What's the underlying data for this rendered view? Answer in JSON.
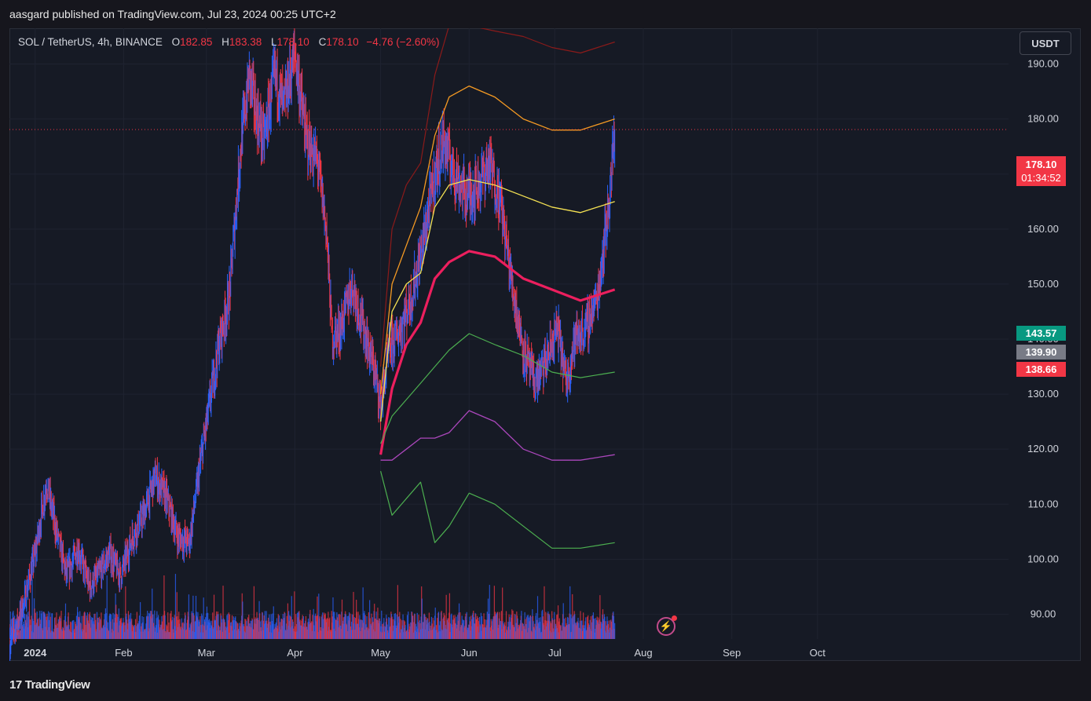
{
  "header": {
    "published": "aasgard published on TradingView.com, Jul 23, 2024 00:25 UTC+2"
  },
  "legend": {
    "symbol": "SOL / TetherUS, 4h, BINANCE",
    "open_label": "O",
    "open": "182.85",
    "high_label": "H",
    "high": "183.38",
    "low_label": "L",
    "low": "178.10",
    "close_label": "C",
    "close": "178.10",
    "change": "−4.76 (−2.60%)"
  },
  "currency_button": "USDT",
  "footer": {
    "brand": "TradingView",
    "logo_mark": "17"
  },
  "price_tags": [
    {
      "value": "178.10",
      "sub": "01:34:52",
      "color": "#f23645"
    },
    {
      "value": "143.57",
      "color": "#089981"
    },
    {
      "value": "139.90",
      "color": "#787b86"
    },
    {
      "value": "138.66",
      "color": "#f23645"
    }
  ],
  "colors": {
    "bull": "#2962ff",
    "bear": "#f23645",
    "vwap": "#ec1f5e",
    "band1_up": "#f5e253",
    "band2_up": "#f59a23",
    "band3_up": "#8b1a1a",
    "band1_dn": "#4caf50",
    "band2_dn": "#ab47bc",
    "band3_dn": "#4caf50"
  },
  "chart_data": {
    "type": "candlestick",
    "symbol": "SOL / TetherUS",
    "interval": "4h",
    "exchange": "BINANCE",
    "y_axis": {
      "ticks": [
        90,
        100,
        110,
        120,
        130,
        140,
        150,
        160,
        170,
        180,
        190
      ],
      "range": [
        81.5,
        196.5
      ]
    },
    "x_axis": {
      "range": [
        "2023-12-23",
        "2024-10-25"
      ],
      "ticks": [
        {
          "label": "2024",
          "date": "2024-01-01"
        },
        {
          "label": "Feb",
          "date": "2024-02-01"
        },
        {
          "label": "Mar",
          "date": "2024-03-01"
        },
        {
          "label": "Apr",
          "date": "2024-04-01"
        },
        {
          "label": "May",
          "date": "2024-05-01"
        },
        {
          "label": "Jun",
          "date": "2024-06-01"
        },
        {
          "label": "Jul",
          "date": "2024-07-01"
        },
        {
          "label": "Aug",
          "date": "2024-08-01"
        },
        {
          "label": "Sep",
          "date": "2024-09-01"
        },
        {
          "label": "Oct",
          "date": "2024-10-01"
        }
      ]
    },
    "last_price": 178.1,
    "price_path": {
      "dates": [
        "2023-12-23",
        "2023-12-28",
        "2024-01-01",
        "2024-01-05",
        "2024-01-08",
        "2024-01-12",
        "2024-01-16",
        "2024-01-20",
        "2024-01-23",
        "2024-01-27",
        "2024-01-31",
        "2024-02-04",
        "2024-02-08",
        "2024-02-12",
        "2024-02-16",
        "2024-02-20",
        "2024-02-24",
        "2024-02-28",
        "2024-03-02",
        "2024-03-05",
        "2024-03-09",
        "2024-03-13",
        "2024-03-16",
        "2024-03-18",
        "2024-03-21",
        "2024-03-25",
        "2024-03-28",
        "2024-04-01",
        "2024-04-05",
        "2024-04-09",
        "2024-04-12",
        "2024-04-14",
        "2024-04-17",
        "2024-04-21",
        "2024-04-25",
        "2024-04-29",
        "2024-05-01",
        "2024-05-04",
        "2024-05-08",
        "2024-05-12",
        "2024-05-16",
        "2024-05-20",
        "2024-05-23",
        "2024-05-27",
        "2024-05-31",
        "2024-06-04",
        "2024-06-08",
        "2024-06-12",
        "2024-06-16",
        "2024-06-20",
        "2024-06-24",
        "2024-06-28",
        "2024-07-02",
        "2024-07-05",
        "2024-07-08",
        "2024-07-12",
        "2024-07-16",
        "2024-07-20",
        "2024-07-22"
      ],
      "closes": [
        84,
        92,
        101,
        114,
        106,
        97,
        102,
        95,
        97,
        101,
        97,
        104,
        108,
        115,
        111,
        104,
        103,
        118,
        128,
        138,
        148,
        175,
        188,
        182,
        176,
        188,
        182,
        192,
        176,
        172,
        160,
        140,
        142,
        150,
        142,
        134,
        128,
        138,
        142,
        148,
        158,
        170,
        176,
        170,
        166,
        168,
        172,
        165,
        150,
        138,
        132,
        136,
        142,
        132,
        140,
        142,
        148,
        165,
        178
      ]
    },
    "anchored_vwap": {
      "anchor": "2024-05-01",
      "dates": [
        "2024-05-01",
        "2024-05-05",
        "2024-05-10",
        "2024-05-15",
        "2024-05-20",
        "2024-05-25",
        "2024-06-01",
        "2024-06-10",
        "2024-06-20",
        "2024-06-30",
        "2024-07-10",
        "2024-07-22"
      ],
      "vwap": [
        119,
        131,
        139,
        143,
        151,
        154,
        156,
        155,
        151,
        149,
        147,
        149
      ],
      "band1_upper": [
        125,
        145,
        150,
        152,
        164,
        168,
        169,
        168,
        166,
        164,
        163,
        165
      ],
      "band2_upper": [
        130,
        150,
        157,
        164,
        177,
        184,
        186,
        184,
        180,
        178,
        178,
        180
      ],
      "band3_upper": [
        135,
        160,
        168,
        172,
        188,
        197,
        197,
        196,
        195,
        193,
        192,
        194
      ],
      "band1_lower": [
        121,
        126,
        129,
        132,
        135,
        138,
        141,
        139,
        137,
        134,
        133,
        134
      ],
      "band2_lower": [
        118,
        118,
        120,
        122,
        122,
        123,
        127,
        125,
        120,
        118,
        118,
        119
      ],
      "band3_lower": [
        116,
        108,
        111,
        114,
        103,
        106,
        112,
        110,
        106,
        102,
        102,
        103
      ]
    }
  }
}
